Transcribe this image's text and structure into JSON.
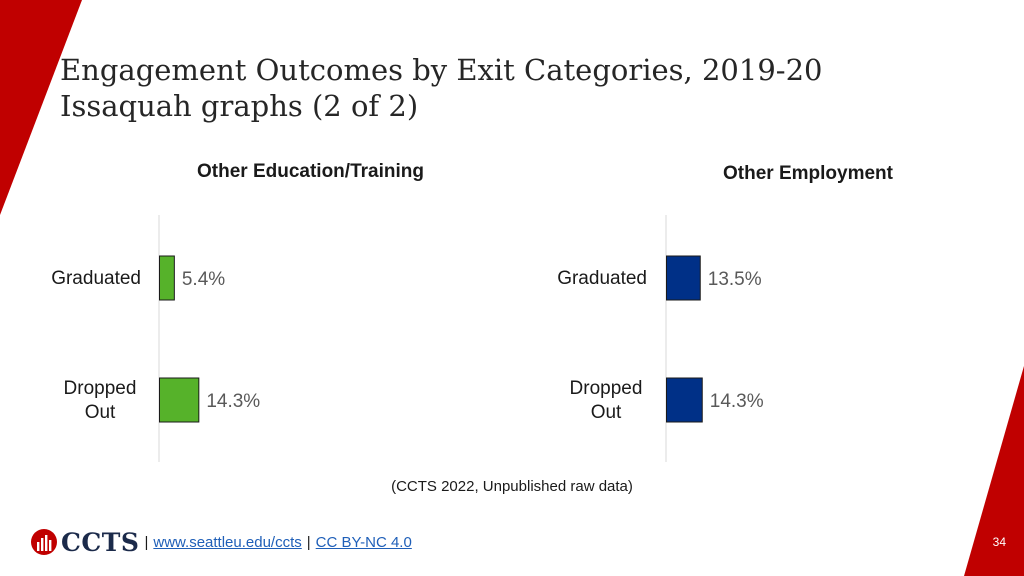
{
  "slide": {
    "title_line1": "Engagement Outcomes by Exit Categories, 2019-20",
    "title_line2": "Issaquah graphs (2 of 2)",
    "source_note": "(CCTS 2022, Unpublished raw data)",
    "page_number": "34",
    "accent_color": "#c00000"
  },
  "footer": {
    "logo_text": "CCTS",
    "separator": "|",
    "link_url_text": "www.seattleu.edu/ccts",
    "link_license_text": "CC BY-NC 4.0"
  },
  "chart_data": [
    {
      "type": "bar",
      "orientation": "horizontal",
      "title": "Other Education/Training",
      "categories": [
        "Graduated",
        "Dropped\nOut"
      ],
      "values": [
        5.4,
        14.3
      ],
      "value_labels": [
        "5.4%",
        "14.3%"
      ],
      "unit": "%",
      "color": "#56b22a",
      "grid": false
    },
    {
      "type": "bar",
      "orientation": "horizontal",
      "title": "Other Employment",
      "categories": [
        "Graduated",
        "Dropped\nOut"
      ],
      "values": [
        13.5,
        14.3
      ],
      "value_labels": [
        "13.5%",
        "14.3%"
      ],
      "unit": "%",
      "color": "#003087",
      "grid": false
    }
  ]
}
